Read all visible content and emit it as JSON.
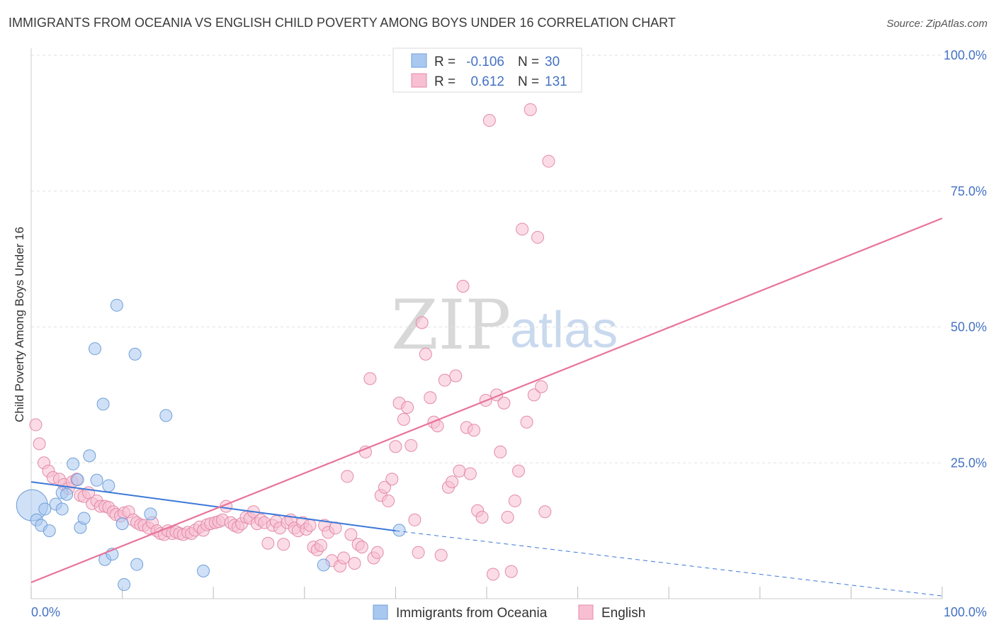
{
  "title": "IMMIGRANTS FROM OCEANIA VS ENGLISH CHILD POVERTY AMONG BOYS UNDER 16 CORRELATION CHART",
  "source": "Source: ZipAtlas.com",
  "watermark": {
    "zip": "ZIP",
    "atlas": "atlas"
  },
  "legend": {
    "rows": [
      {
        "r_label": "R =",
        "r_value": "-0.106",
        "n_label": "N =",
        "n_value": "30",
        "color": "#a9c8f0",
        "border": "#6f9fd8"
      },
      {
        "r_label": "R =",
        "r_value": "0.612",
        "n_label": "N =",
        "n_value": "131",
        "color": "#f8bfd2",
        "border": "#e38aa8"
      }
    ]
  },
  "bottom_legend": [
    {
      "label": "Immigrants from Oceania",
      "color": "#a9c8f0",
      "border": "#6f9fd8"
    },
    {
      "label": "English",
      "color": "#f8bfd2",
      "border": "#e38aa8"
    }
  ],
  "chart_data": {
    "type": "scatter",
    "title": "IMMIGRANTS FROM OCEANIA VS ENGLISH CHILD POVERTY AMONG BOYS UNDER 16 CORRELATION CHART",
    "xlabel": "",
    "ylabel": "Child Poverty Among Boys Under 16",
    "xlim": [
      0,
      100
    ],
    "ylim": [
      0,
      100
    ],
    "x_ticks": [
      "0.0%",
      "100.0%"
    ],
    "y_ticks": [
      {
        "value": 25,
        "label": "25.0%"
      },
      {
        "value": 50,
        "label": "50.0%"
      },
      {
        "value": 75,
        "label": "75.0%"
      },
      {
        "value": 100,
        "label": "100.0%"
      }
    ],
    "grid": true,
    "series": [
      {
        "name": "Immigrants from Oceania",
        "color": "#a9c8f0",
        "stroke": "#6f9fd8",
        "trend": {
          "x": [
            0,
            40
          ],
          "y": [
            21.5,
            12.5
          ],
          "extend_to": [
            100,
            0.5
          ],
          "color": "#3b78d8"
        },
        "points": [
          [
            0.1,
            17.2
          ],
          [
            0.6,
            14.5
          ],
          [
            1.1,
            13.5
          ],
          [
            1.5,
            16.5
          ],
          [
            2.0,
            12.5
          ],
          [
            2.7,
            17.4
          ],
          [
            3.4,
            19.5
          ],
          [
            3.4,
            16.5
          ],
          [
            3.9,
            19.2
          ],
          [
            4.6,
            24.8
          ],
          [
            5.1,
            21.9
          ],
          [
            5.4,
            13.1
          ],
          [
            5.8,
            14.8
          ],
          [
            6.4,
            26.3
          ],
          [
            7.0,
            46.0
          ],
          [
            7.2,
            21.8
          ],
          [
            7.9,
            35.8
          ],
          [
            8.1,
            7.2
          ],
          [
            8.5,
            20.8
          ],
          [
            8.9,
            8.2
          ],
          [
            9.4,
            54.0
          ],
          [
            10.0,
            13.8
          ],
          [
            10.2,
            2.6
          ],
          [
            11.4,
            45.0
          ],
          [
            11.6,
            6.3
          ],
          [
            13.1,
            15.6
          ],
          [
            14.8,
            33.7
          ],
          [
            18.9,
            5.1
          ],
          [
            32.1,
            6.2
          ],
          [
            40.4,
            12.6
          ]
        ]
      },
      {
        "name": "English",
        "color": "#f8bfd2",
        "stroke": "#e38aa8",
        "trend": {
          "x": [
            0,
            100
          ],
          "y": [
            3.0,
            70.0
          ],
          "color": "#e8739a"
        },
        "points": [
          [
            0.5,
            32.0
          ],
          [
            0.9,
            28.5
          ],
          [
            1.4,
            25.0
          ],
          [
            1.9,
            23.5
          ],
          [
            2.4,
            22.3
          ],
          [
            3.1,
            22.0
          ],
          [
            3.6,
            21.0
          ],
          [
            4.1,
            20.3
          ],
          [
            4.5,
            21.5
          ],
          [
            5.0,
            22.0
          ],
          [
            5.4,
            19.0
          ],
          [
            5.8,
            18.8
          ],
          [
            6.3,
            19.5
          ],
          [
            6.7,
            17.5
          ],
          [
            7.2,
            18.0
          ],
          [
            7.6,
            17.0
          ],
          [
            8.1,
            17.0
          ],
          [
            8.5,
            16.8
          ],
          [
            9.0,
            16.0
          ],
          [
            9.3,
            15.5
          ],
          [
            9.8,
            15.2
          ],
          [
            10.2,
            15.8
          ],
          [
            10.7,
            16.0
          ],
          [
            11.2,
            14.5
          ],
          [
            11.6,
            14.0
          ],
          [
            12.0,
            13.6
          ],
          [
            12.4,
            13.5
          ],
          [
            12.9,
            13.0
          ],
          [
            13.3,
            14.0
          ],
          [
            13.8,
            12.5
          ],
          [
            14.2,
            12.0
          ],
          [
            14.6,
            11.8
          ],
          [
            15.0,
            12.5
          ],
          [
            15.5,
            12.0
          ],
          [
            15.9,
            12.3
          ],
          [
            16.3,
            12.0
          ],
          [
            16.7,
            11.8
          ],
          [
            17.2,
            12.2
          ],
          [
            17.6,
            12.0
          ],
          [
            18.0,
            12.6
          ],
          [
            18.5,
            13.2
          ],
          [
            18.9,
            12.6
          ],
          [
            19.3,
            13.6
          ],
          [
            19.7,
            13.8
          ],
          [
            20.2,
            14.0
          ],
          [
            20.6,
            14.2
          ],
          [
            21.0,
            14.5
          ],
          [
            21.4,
            17.0
          ],
          [
            21.9,
            14.0
          ],
          [
            22.3,
            13.5
          ],
          [
            22.7,
            13.2
          ],
          [
            23.1,
            13.8
          ],
          [
            23.6,
            15.0
          ],
          [
            24.0,
            14.8
          ],
          [
            24.4,
            16.0
          ],
          [
            24.8,
            13.8
          ],
          [
            25.2,
            14.5
          ],
          [
            25.6,
            14.0
          ],
          [
            26.0,
            10.2
          ],
          [
            26.5,
            13.5
          ],
          [
            26.9,
            14.2
          ],
          [
            27.3,
            13.0
          ],
          [
            27.7,
            10.0
          ],
          [
            28.1,
            14.0
          ],
          [
            28.5,
            14.5
          ],
          [
            28.9,
            13.0
          ],
          [
            29.3,
            12.5
          ],
          [
            29.8,
            14.0
          ],
          [
            30.2,
            12.8
          ],
          [
            30.6,
            13.5
          ],
          [
            31.0,
            9.5
          ],
          [
            31.4,
            9.0
          ],
          [
            31.8,
            9.8
          ],
          [
            32.2,
            13.5
          ],
          [
            32.6,
            12.2
          ],
          [
            33.0,
            7.0
          ],
          [
            33.4,
            13.0
          ],
          [
            33.9,
            6.0
          ],
          [
            34.3,
            7.5
          ],
          [
            34.7,
            22.5
          ],
          [
            35.1,
            11.8
          ],
          [
            35.5,
            6.5
          ],
          [
            35.9,
            10.0
          ],
          [
            36.3,
            9.5
          ],
          [
            36.7,
            27.0
          ],
          [
            37.2,
            40.5
          ],
          [
            37.6,
            7.5
          ],
          [
            38.0,
            8.5
          ],
          [
            38.4,
            19.0
          ],
          [
            38.8,
            20.5
          ],
          [
            39.2,
            18.0
          ],
          [
            39.6,
            22.0
          ],
          [
            40.0,
            28.0
          ],
          [
            40.4,
            36.0
          ],
          [
            40.9,
            33.0
          ],
          [
            41.3,
            35.2
          ],
          [
            41.7,
            28.2
          ],
          [
            42.1,
            14.5
          ],
          [
            42.5,
            8.5
          ],
          [
            42.9,
            50.8
          ],
          [
            43.3,
            45.0
          ],
          [
            43.8,
            37.0
          ],
          [
            44.2,
            32.5
          ],
          [
            44.6,
            31.8
          ],
          [
            45.0,
            8.0
          ],
          [
            45.4,
            40.2
          ],
          [
            45.8,
            20.5
          ],
          [
            46.2,
            21.5
          ],
          [
            46.6,
            41.0
          ],
          [
            47.0,
            23.5
          ],
          [
            47.4,
            57.5
          ],
          [
            47.8,
            31.5
          ],
          [
            48.2,
            23.0
          ],
          [
            48.6,
            31.0
          ],
          [
            49.0,
            16.2
          ],
          [
            49.5,
            15.0
          ],
          [
            49.9,
            36.5
          ],
          [
            50.3,
            88.0
          ],
          [
            50.7,
            4.5
          ],
          [
            51.1,
            37.5
          ],
          [
            51.5,
            27.0
          ],
          [
            51.9,
            36.0
          ],
          [
            52.3,
            15.0
          ],
          [
            52.7,
            5.0
          ],
          [
            53.1,
            18.0
          ],
          [
            53.5,
            23.5
          ],
          [
            53.9,
            68.0
          ],
          [
            54.4,
            32.5
          ],
          [
            54.8,
            90.0
          ],
          [
            55.2,
            37.5
          ],
          [
            55.6,
            66.5
          ],
          [
            56.0,
            39.0
          ],
          [
            56.4,
            16.0
          ],
          [
            56.8,
            80.5
          ],
          [
            57.2,
            100.0
          ],
          [
            57.6,
            100.0
          ]
        ]
      }
    ]
  }
}
